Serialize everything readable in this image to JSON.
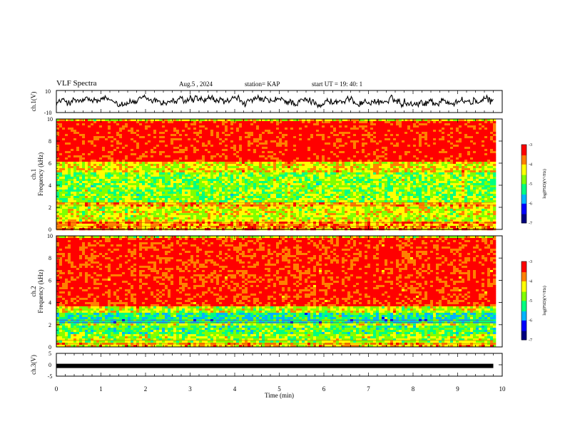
{
  "header": {
    "title": "VLF Spectra",
    "date": "Aug.5 , 2024",
    "station": "station= KAP",
    "start": "start  UT  =   19: 40: 1"
  },
  "chart_data": [
    {
      "type": "line",
      "name_panel": "ch1-waveform",
      "ylabel": "ch.1(V)",
      "ylim": [
        -10,
        10
      ],
      "yticks": [
        "10",
        "-10"
      ],
      "xlim": [
        0,
        10
      ]
    },
    {
      "type": "heatmap",
      "name_panel": "ch1-spectrogram",
      "ylabel_a": "ch.1",
      "ylabel_b": "Frequency  (kHz)",
      "ylim": [
        0,
        10
      ],
      "yticks": [
        "0",
        "2",
        "4",
        "6",
        "8",
        "10"
      ],
      "xlim": [
        0,
        9.8
      ],
      "bands": [
        {
          "from": 0,
          "to": 0.8,
          "level": -3.8
        },
        {
          "from": 0.8,
          "to": 2.2,
          "level": -4.4
        },
        {
          "from": 2.2,
          "to": 2.5,
          "level": -4.0
        },
        {
          "from": 2.5,
          "to": 5.3,
          "level": -4.9
        },
        {
          "from": 5.3,
          "to": 6.2,
          "level": -4.4
        },
        {
          "from": 6.2,
          "to": 10,
          "level": -3.3
        }
      ],
      "colorbar": {
        "label": "log(PSD)(V²/Hz)",
        "ticks": [
          "-3",
          "-4",
          "-5",
          "-6",
          "-7"
        ],
        "range": [
          -7,
          -3
        ]
      }
    },
    {
      "type": "heatmap",
      "name_panel": "ch2-spectrogram",
      "ylabel_a": "ch.2",
      "ylabel_b": "Frequency  (kHz)",
      "ylim": [
        0,
        10
      ],
      "yticks": [
        "0",
        "2",
        "4",
        "6",
        "8",
        "10"
      ],
      "xlim": [
        0,
        9.8
      ],
      "bands": [
        {
          "from": 0,
          "to": 0.5,
          "level": -4.0
        },
        {
          "from": 0.5,
          "to": 1.3,
          "level": -4.6
        },
        {
          "from": 1.3,
          "to": 2.0,
          "level": -5.0
        },
        {
          "from": 2.0,
          "to": 2.3,
          "level": -4.5
        },
        {
          "from": 2.3,
          "to": 3.2,
          "level": -5.4
        },
        {
          "from": 3.2,
          "to": 3.8,
          "level": -4.6
        },
        {
          "from": 3.8,
          "to": 10,
          "level": -3.4
        }
      ],
      "colorbar": {
        "label": "log(PSD)(V²/Hz)",
        "ticks": [
          "-3",
          "-4",
          "-5",
          "-6",
          "-7"
        ],
        "range": [
          -7,
          -3
        ]
      }
    },
    {
      "type": "line",
      "name_panel": "ch3-signal",
      "ylabel": "ch.3(V)",
      "ylim": [
        -5,
        5
      ],
      "yticks": [
        "5",
        "0",
        "-5"
      ],
      "xlim": [
        0,
        10
      ],
      "level": -0.5
    }
  ],
  "xaxis": {
    "label": "Time  (min)",
    "ticks": [
      "0",
      "1",
      "2",
      "3",
      "4",
      "5",
      "6",
      "7",
      "8",
      "9",
      "10"
    ]
  },
  "colors": {
    "scale": [
      "#00007f",
      "#0000ff",
      "#00b4ff",
      "#00ff80",
      "#80ff00",
      "#ffff00",
      "#ff8000",
      "#ff0000"
    ]
  }
}
